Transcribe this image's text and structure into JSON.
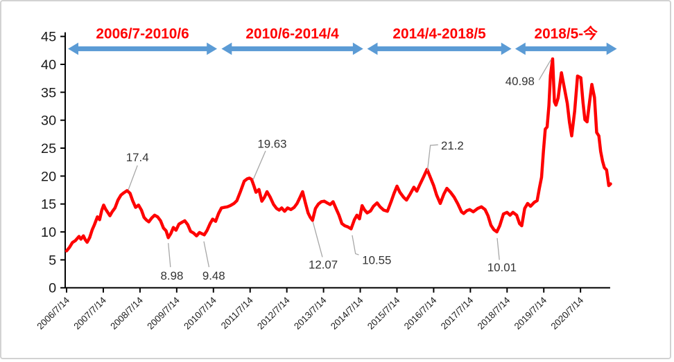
{
  "chart_data": {
    "type": "line",
    "title": "",
    "xlabel": "",
    "ylabel": "",
    "ylim": [
      0,
      45
    ],
    "y_ticks": [
      0,
      5,
      10,
      15,
      20,
      25,
      30,
      35,
      40,
      45
    ],
    "x_tick_start_year": 2006.54,
    "x_tick_step_years": 1,
    "x_tick_labels": [
      "2006/7/14",
      "2007/7/14",
      "2008/7/14",
      "2009/7/14",
      "2010/7/14",
      "2011/7/14",
      "2012/7/14",
      "2013/7/14",
      "2014/7/14",
      "2015/7/14",
      "2016/7/14",
      "2017/7/14",
      "2018/7/14",
      "2019/7/14",
      "2020/7/14"
    ],
    "grid": false,
    "legend": "none",
    "series": [
      {
        "name": "price",
        "color": "#fe0000",
        "points": [
          [
            2006.54,
            6.6
          ],
          [
            2006.62,
            7.25
          ],
          [
            2006.7,
            8.1
          ],
          [
            2006.78,
            8.45
          ],
          [
            2006.84,
            8.9
          ],
          [
            2006.88,
            9.2
          ],
          [
            2006.93,
            8.7
          ],
          [
            2007.0,
            9.3
          ],
          [
            2007.05,
            8.6
          ],
          [
            2007.1,
            8.15
          ],
          [
            2007.17,
            9.0
          ],
          [
            2007.24,
            10.4
          ],
          [
            2007.3,
            11.3
          ],
          [
            2007.38,
            12.7
          ],
          [
            2007.44,
            12.2
          ],
          [
            2007.5,
            13.9
          ],
          [
            2007.55,
            14.8
          ],
          [
            2007.6,
            14.1
          ],
          [
            2007.66,
            13.5
          ],
          [
            2007.72,
            12.9
          ],
          [
            2007.78,
            13.6
          ],
          [
            2007.86,
            14.3
          ],
          [
            2007.94,
            15.7
          ],
          [
            2008.02,
            16.6
          ],
          [
            2008.1,
            17.0
          ],
          [
            2008.19,
            17.4
          ],
          [
            2008.27,
            16.9
          ],
          [
            2008.34,
            15.6
          ],
          [
            2008.42,
            14.4
          ],
          [
            2008.5,
            14.8
          ],
          [
            2008.58,
            13.9
          ],
          [
            2008.65,
            12.6
          ],
          [
            2008.72,
            12.1
          ],
          [
            2008.78,
            11.8
          ],
          [
            2008.86,
            12.5
          ],
          [
            2008.94,
            13.0
          ],
          [
            2009.02,
            12.7
          ],
          [
            2009.1,
            12.0
          ],
          [
            2009.18,
            10.7
          ],
          [
            2009.25,
            10.2
          ],
          [
            2009.31,
            8.98
          ],
          [
            2009.38,
            9.7
          ],
          [
            2009.45,
            10.8
          ],
          [
            2009.52,
            10.3
          ],
          [
            2009.6,
            11.4
          ],
          [
            2009.68,
            11.7
          ],
          [
            2009.76,
            12.0
          ],
          [
            2009.84,
            11.3
          ],
          [
            2009.92,
            10.1
          ],
          [
            2010.0,
            9.8
          ],
          [
            2010.08,
            9.3
          ],
          [
            2010.16,
            9.9
          ],
          [
            2010.22,
            9.7
          ],
          [
            2010.29,
            9.48
          ],
          [
            2010.37,
            10.3
          ],
          [
            2010.45,
            11.5
          ],
          [
            2010.52,
            12.3
          ],
          [
            2010.6,
            11.9
          ],
          [
            2010.68,
            13.3
          ],
          [
            2010.76,
            14.3
          ],
          [
            2010.84,
            14.4
          ],
          [
            2010.92,
            14.5
          ],
          [
            2011.0,
            14.7
          ],
          [
            2011.1,
            15.1
          ],
          [
            2011.18,
            15.6
          ],
          [
            2011.28,
            17.3
          ],
          [
            2011.38,
            19.1
          ],
          [
            2011.46,
            19.5
          ],
          [
            2011.52,
            19.63
          ],
          [
            2011.58,
            19.4
          ],
          [
            2011.64,
            18.3
          ],
          [
            2011.7,
            17.1
          ],
          [
            2011.78,
            17.6
          ],
          [
            2011.86,
            15.5
          ],
          [
            2011.93,
            16.2
          ],
          [
            2012.0,
            17.2
          ],
          [
            2012.08,
            16.3
          ],
          [
            2012.18,
            14.9
          ],
          [
            2012.26,
            14.2
          ],
          [
            2012.33,
            13.9
          ],
          [
            2012.4,
            14.3
          ],
          [
            2012.48,
            13.7
          ],
          [
            2012.56,
            14.3
          ],
          [
            2012.65,
            14.0
          ],
          [
            2012.74,
            14.4
          ],
          [
            2012.82,
            15.1
          ],
          [
            2012.9,
            16.2
          ],
          [
            2012.97,
            17.2
          ],
          [
            2013.05,
            15.1
          ],
          [
            2013.12,
            13.4
          ],
          [
            2013.18,
            12.6
          ],
          [
            2013.24,
            12.07
          ],
          [
            2013.32,
            14.2
          ],
          [
            2013.4,
            15.0
          ],
          [
            2013.48,
            15.4
          ],
          [
            2013.56,
            15.5
          ],
          [
            2013.64,
            15.2
          ],
          [
            2013.72,
            14.9
          ],
          [
            2013.8,
            15.4
          ],
          [
            2013.88,
            14.2
          ],
          [
            2013.96,
            13.0
          ],
          [
            2014.04,
            11.5
          ],
          [
            2014.12,
            11.1
          ],
          [
            2014.2,
            10.9
          ],
          [
            2014.29,
            10.55
          ],
          [
            2014.38,
            12.2
          ],
          [
            2014.45,
            13.0
          ],
          [
            2014.52,
            12.35
          ],
          [
            2014.59,
            14.7
          ],
          [
            2014.66,
            13.9
          ],
          [
            2014.73,
            13.4
          ],
          [
            2014.82,
            13.75
          ],
          [
            2014.9,
            14.6
          ],
          [
            2015.0,
            15.2
          ],
          [
            2015.08,
            14.5
          ],
          [
            2015.18,
            13.9
          ],
          [
            2015.28,
            13.7
          ],
          [
            2015.38,
            15.4
          ],
          [
            2015.46,
            16.9
          ],
          [
            2015.54,
            18.2
          ],
          [
            2015.62,
            17.1
          ],
          [
            2015.72,
            16.2
          ],
          [
            2015.8,
            15.7
          ],
          [
            2015.9,
            16.8
          ],
          [
            2016.0,
            18.0
          ],
          [
            2016.08,
            17.3
          ],
          [
            2016.16,
            18.4
          ],
          [
            2016.26,
            19.8
          ],
          [
            2016.36,
            21.2
          ],
          [
            2016.44,
            19.9
          ],
          [
            2016.54,
            18.3
          ],
          [
            2016.62,
            16.6
          ],
          [
            2016.72,
            15.1
          ],
          [
            2016.82,
            16.8
          ],
          [
            2016.9,
            17.8
          ],
          [
            2017.0,
            17.1
          ],
          [
            2017.1,
            16.2
          ],
          [
            2017.2,
            15.0
          ],
          [
            2017.3,
            13.6
          ],
          [
            2017.36,
            13.3
          ],
          [
            2017.44,
            13.8
          ],
          [
            2017.52,
            14.0
          ],
          [
            2017.62,
            13.6
          ],
          [
            2017.74,
            14.2
          ],
          [
            2017.84,
            14.5
          ],
          [
            2017.94,
            14.0
          ],
          [
            2018.02,
            12.9
          ],
          [
            2018.1,
            11.2
          ],
          [
            2018.18,
            10.4
          ],
          [
            2018.26,
            10.01
          ],
          [
            2018.34,
            11.1
          ],
          [
            2018.44,
            13.2
          ],
          [
            2018.54,
            13.5
          ],
          [
            2018.62,
            13.0
          ],
          [
            2018.7,
            13.5
          ],
          [
            2018.8,
            13.0
          ],
          [
            2018.88,
            11.5
          ],
          [
            2018.94,
            11.1
          ],
          [
            2019.02,
            14.2
          ],
          [
            2019.1,
            15.1
          ],
          [
            2019.18,
            14.6
          ],
          [
            2019.28,
            15.3
          ],
          [
            2019.36,
            15.6
          ],
          [
            2019.42,
            17.8
          ],
          [
            2019.48,
            19.8
          ],
          [
            2019.53,
            24.4
          ],
          [
            2019.58,
            28.4
          ],
          [
            2019.63,
            28.8
          ],
          [
            2019.68,
            32.6
          ],
          [
            2019.72,
            38.0
          ],
          [
            2019.78,
            40.98
          ],
          [
            2019.83,
            33.3
          ],
          [
            2019.87,
            32.7
          ],
          [
            2019.93,
            34.0
          ],
          [
            2019.97,
            36.0
          ],
          [
            2020.02,
            38.5
          ],
          [
            2020.1,
            35.8
          ],
          [
            2020.18,
            33.0
          ],
          [
            2020.24,
            29.6
          ],
          [
            2020.3,
            27.2
          ],
          [
            2020.38,
            31.6
          ],
          [
            2020.46,
            37.9
          ],
          [
            2020.55,
            37.6
          ],
          [
            2020.61,
            33.1
          ],
          [
            2020.66,
            30.1
          ],
          [
            2020.72,
            29.7
          ],
          [
            2020.79,
            33.4
          ],
          [
            2020.85,
            36.4
          ],
          [
            2020.92,
            34.1
          ],
          [
            2020.98,
            27.8
          ],
          [
            2021.04,
            27.2
          ],
          [
            2021.09,
            24.4
          ],
          [
            2021.14,
            22.7
          ],
          [
            2021.19,
            21.5
          ],
          [
            2021.25,
            21.1
          ],
          [
            2021.31,
            18.3
          ],
          [
            2021.36,
            18.6
          ]
        ]
      }
    ],
    "annotations": [
      {
        "text": "17.4",
        "label_at": [
          2008.47,
          23.4
        ],
        "leader": [
          [
            2008.47,
            21.9
          ],
          [
            2008.22,
            17.5
          ]
        ]
      },
      {
        "text": "8.98",
        "label_at": [
          2009.41,
          2.2
        ],
        "leader": [
          [
            2009.37,
            3.7
          ],
          [
            2009.31,
            8.0
          ]
        ]
      },
      {
        "text": "9.48",
        "label_at": [
          2010.55,
          2.2
        ],
        "leader": [
          [
            2010.42,
            3.7
          ],
          [
            2010.28,
            8.3
          ]
        ]
      },
      {
        "text": "19.63",
        "label_at": [
          2012.14,
          25.8
        ],
        "leader": [
          [
            2011.96,
            24.5
          ],
          [
            2011.62,
            19.3
          ]
        ]
      },
      {
        "text": "12.07",
        "label_at": [
          2013.53,
          4.2
        ],
        "leader": [
          [
            2013.51,
            5.5
          ],
          [
            2013.25,
            11.8
          ]
        ]
      },
      {
        "text": "10.55",
        "label_at": [
          2014.99,
          5.0
        ],
        "leader": [
          [
            2014.5,
            5.9
          ],
          [
            2014.41,
            6.1
          ],
          [
            2014.32,
            9.4
          ]
        ]
      },
      {
        "text": "21.2",
        "label_at": [
          2017.05,
          25.5
        ],
        "leader": [
          [
            2016.66,
            25.6
          ],
          [
            2016.45,
            25.5
          ],
          [
            2016.37,
            20.9
          ]
        ]
      },
      {
        "text": "10.01",
        "label_at": [
          2018.4,
          3.7
        ],
        "leader": [
          [
            2018.33,
            5.0
          ],
          [
            2018.27,
            8.9
          ]
        ]
      },
      {
        "text": "40.98",
        "label_at": [
          2018.89,
          37.0
        ],
        "leader": [
          [
            2019.41,
            37.2
          ],
          [
            2019.73,
            40.8
          ]
        ]
      }
    ],
    "periods": [
      {
        "label": "2006/7-2010/6",
        "from": 2006.58,
        "to": 2010.64
      },
      {
        "label": "2010/6-2014/4",
        "from": 2010.76,
        "to": 2014.62
      },
      {
        "label": "2014/4-2018/5",
        "from": 2014.73,
        "to": 2018.66
      },
      {
        "label": "2018/5-今",
        "from": 2018.76,
        "to": 2021.53
      }
    ],
    "colors": {
      "line": "#fe0000",
      "period_label": "#ff0000",
      "arrow": "#5b9bd5",
      "axis": "#000000",
      "annotation_text": "#333333",
      "leader_line": "#a6a6a6"
    }
  }
}
